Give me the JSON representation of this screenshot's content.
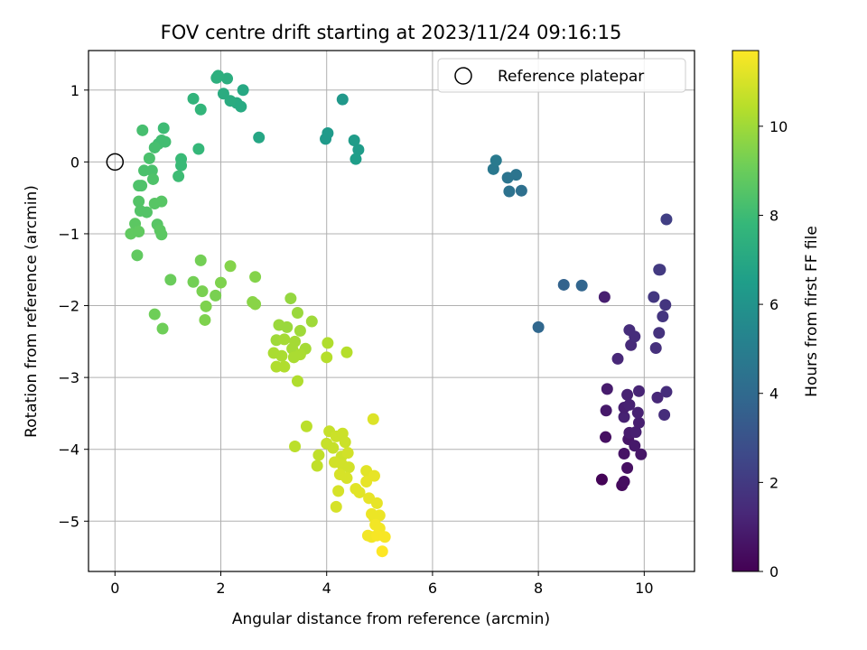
{
  "chart_data": {
    "type": "scatter",
    "title": "FOV centre drift starting at 2023/11/24 09:16:15",
    "xlabel": "Angular distance from reference (arcmin)",
    "ylabel": "Rotation from reference (arcmin)",
    "xlim": [
      -0.5,
      10.95
    ],
    "ylim": [
      -5.7,
      1.55
    ],
    "xticks": [
      0,
      2,
      4,
      6,
      8,
      10
    ],
    "yticks": [
      -5,
      -4,
      -3,
      -2,
      -1,
      0,
      1
    ],
    "grid": true,
    "legend": {
      "placement": "top-right",
      "entries": [
        "Reference platepar"
      ]
    },
    "reference_point": {
      "x": 0,
      "y": 0,
      "marker": "open-circle"
    },
    "colorbar": {
      "label": "Hours from first FF file",
      "colormap": "viridis",
      "range": [
        0,
        11.7
      ],
      "ticks": [
        0,
        2,
        4,
        6,
        8,
        10
      ]
    },
    "points": [
      {
        "x": 9.2,
        "y": -4.42,
        "h": 0.1
      },
      {
        "x": 9.58,
        "y": -4.5,
        "h": 0.3
      },
      {
        "x": 9.62,
        "y": -4.45,
        "h": 0.4
      },
      {
        "x": 9.68,
        "y": -4.26,
        "h": 0.5
      },
      {
        "x": 9.62,
        "y": -4.06,
        "h": 0.6
      },
      {
        "x": 9.27,
        "y": -3.83,
        "h": 0.5
      },
      {
        "x": 9.7,
        "y": -3.86,
        "h": 0.7
      },
      {
        "x": 9.82,
        "y": -3.95,
        "h": 0.8
      },
      {
        "x": 9.94,
        "y": -4.07,
        "h": 0.7
      },
      {
        "x": 9.72,
        "y": -3.77,
        "h": 0.9
      },
      {
        "x": 9.84,
        "y": -3.76,
        "h": 1.0
      },
      {
        "x": 9.9,
        "y": -3.63,
        "h": 1.0
      },
      {
        "x": 9.88,
        "y": -3.49,
        "h": 1.1
      },
      {
        "x": 9.62,
        "y": -3.55,
        "h": 1.1
      },
      {
        "x": 9.28,
        "y": -3.46,
        "h": 0.8
      },
      {
        "x": 9.62,
        "y": -3.42,
        "h": 1.0
      },
      {
        "x": 9.72,
        "y": -3.38,
        "h": 1.1
      },
      {
        "x": 9.68,
        "y": -3.24,
        "h": 1.1
      },
      {
        "x": 9.9,
        "y": -3.19,
        "h": 1.2
      },
      {
        "x": 9.3,
        "y": -3.16,
        "h": 0.9
      },
      {
        "x": 10.25,
        "y": -3.28,
        "h": 1.3
      },
      {
        "x": 10.42,
        "y": -3.2,
        "h": 1.5
      },
      {
        "x": 10.38,
        "y": -3.52,
        "h": 1.5
      },
      {
        "x": 9.5,
        "y": -2.74,
        "h": 1.3
      },
      {
        "x": 9.75,
        "y": -2.55,
        "h": 1.4
      },
      {
        "x": 9.72,
        "y": -2.34,
        "h": 1.5
      },
      {
        "x": 9.82,
        "y": -2.43,
        "h": 1.5
      },
      {
        "x": 10.22,
        "y": -2.59,
        "h": 1.6
      },
      {
        "x": 10.28,
        "y": -2.38,
        "h": 1.7
      },
      {
        "x": 10.35,
        "y": -2.15,
        "h": 1.8
      },
      {
        "x": 10.4,
        "y": -1.99,
        "h": 1.8
      },
      {
        "x": 10.18,
        "y": -1.88,
        "h": 1.9
      },
      {
        "x": 9.25,
        "y": -1.88,
        "h": 1.0
      },
      {
        "x": 10.28,
        "y": -1.5,
        "h": 2.0
      },
      {
        "x": 10.3,
        "y": -1.5,
        "h": 2.0
      },
      {
        "x": 10.42,
        "y": -0.8,
        "h": 2.2
      },
      {
        "x": 8.48,
        "y": -1.71,
        "h": 3.7
      },
      {
        "x": 8.82,
        "y": -1.72,
        "h": 3.8
      },
      {
        "x": 8.0,
        "y": -2.3,
        "h": 3.9
      },
      {
        "x": 7.68,
        "y": -0.4,
        "h": 4.3
      },
      {
        "x": 7.45,
        "y": -0.41,
        "h": 4.4
      },
      {
        "x": 7.42,
        "y": -0.22,
        "h": 4.5
      },
      {
        "x": 7.58,
        "y": -0.18,
        "h": 4.5
      },
      {
        "x": 7.15,
        "y": -0.1,
        "h": 4.7
      },
      {
        "x": 7.2,
        "y": 0.02,
        "h": 4.8
      },
      {
        "x": 4.3,
        "y": 0.87,
        "h": 6.2
      },
      {
        "x": 3.98,
        "y": 0.32,
        "h": 6.3
      },
      {
        "x": 4.02,
        "y": 0.4,
        "h": 6.3
      },
      {
        "x": 4.52,
        "y": 0.3,
        "h": 6.4
      },
      {
        "x": 4.6,
        "y": 0.17,
        "h": 6.4
      },
      {
        "x": 4.55,
        "y": 0.04,
        "h": 6.5
      },
      {
        "x": 2.72,
        "y": 0.34,
        "h": 6.9
      },
      {
        "x": 2.42,
        "y": 1.0,
        "h": 7.0
      },
      {
        "x": 2.3,
        "y": 0.82,
        "h": 7.1
      },
      {
        "x": 2.38,
        "y": 0.77,
        "h": 7.1
      },
      {
        "x": 2.18,
        "y": 0.85,
        "h": 7.2
      },
      {
        "x": 2.05,
        "y": 0.95,
        "h": 7.2
      },
      {
        "x": 2.12,
        "y": 1.16,
        "h": 7.3
      },
      {
        "x": 1.95,
        "y": 1.2,
        "h": 7.4
      },
      {
        "x": 1.92,
        "y": 1.17,
        "h": 7.4
      },
      {
        "x": 1.48,
        "y": 0.88,
        "h": 7.6
      },
      {
        "x": 1.62,
        "y": 0.73,
        "h": 7.7
      },
      {
        "x": 1.58,
        "y": 0.18,
        "h": 7.8
      },
      {
        "x": 1.25,
        "y": 0.04,
        "h": 7.9
      },
      {
        "x": 1.25,
        "y": -0.05,
        "h": 7.9
      },
      {
        "x": 1.2,
        "y": -0.2,
        "h": 8.0
      },
      {
        "x": 0.92,
        "y": 0.47,
        "h": 8.0
      },
      {
        "x": 0.88,
        "y": 0.3,
        "h": 8.1
      },
      {
        "x": 0.95,
        "y": 0.28,
        "h": 8.1
      },
      {
        "x": 0.82,
        "y": 0.25,
        "h": 8.1
      },
      {
        "x": 0.75,
        "y": 0.2,
        "h": 8.2
      },
      {
        "x": 0.52,
        "y": 0.44,
        "h": 8.2
      },
      {
        "x": 0.65,
        "y": 0.05,
        "h": 8.3
      },
      {
        "x": 0.55,
        "y": -0.12,
        "h": 8.3
      },
      {
        "x": 0.7,
        "y": -0.12,
        "h": 8.3
      },
      {
        "x": 0.72,
        "y": -0.24,
        "h": 8.4
      },
      {
        "x": 0.45,
        "y": -0.33,
        "h": 8.4
      },
      {
        "x": 0.5,
        "y": -0.33,
        "h": 8.4
      },
      {
        "x": 0.45,
        "y": -0.55,
        "h": 8.5
      },
      {
        "x": 0.48,
        "y": -0.68,
        "h": 8.5
      },
      {
        "x": 0.6,
        "y": -0.7,
        "h": 8.5
      },
      {
        "x": 0.75,
        "y": -0.58,
        "h": 8.6
      },
      {
        "x": 0.88,
        "y": -0.55,
        "h": 8.6
      },
      {
        "x": 0.8,
        "y": -0.87,
        "h": 8.6
      },
      {
        "x": 0.85,
        "y": -0.95,
        "h": 8.7
      },
      {
        "x": 0.88,
        "y": -1.01,
        "h": 8.7
      },
      {
        "x": 0.38,
        "y": -0.86,
        "h": 8.7
      },
      {
        "x": 0.3,
        "y": -1.0,
        "h": 8.8
      },
      {
        "x": 0.45,
        "y": -0.97,
        "h": 8.8
      },
      {
        "x": 0.42,
        "y": -1.3,
        "h": 8.8
      },
      {
        "x": 1.05,
        "y": -1.64,
        "h": 9.0
      },
      {
        "x": 0.75,
        "y": -2.12,
        "h": 9.1
      },
      {
        "x": 0.9,
        "y": -2.32,
        "h": 9.1
      },
      {
        "x": 1.48,
        "y": -1.67,
        "h": 9.2
      },
      {
        "x": 1.62,
        "y": -1.37,
        "h": 9.2
      },
      {
        "x": 1.65,
        "y": -1.8,
        "h": 9.3
      },
      {
        "x": 1.9,
        "y": -1.86,
        "h": 9.3
      },
      {
        "x": 2.0,
        "y": -1.68,
        "h": 9.4
      },
      {
        "x": 1.72,
        "y": -2.01,
        "h": 9.4
      },
      {
        "x": 1.7,
        "y": -2.2,
        "h": 9.4
      },
      {
        "x": 2.18,
        "y": -1.45,
        "h": 9.5
      },
      {
        "x": 2.65,
        "y": -1.6,
        "h": 9.5
      },
      {
        "x": 2.6,
        "y": -1.95,
        "h": 9.6
      },
      {
        "x": 2.65,
        "y": -1.98,
        "h": 9.6
      },
      {
        "x": 3.32,
        "y": -1.9,
        "h": 9.8
      },
      {
        "x": 3.1,
        "y": -2.27,
        "h": 9.9
      },
      {
        "x": 3.25,
        "y": -2.3,
        "h": 9.9
      },
      {
        "x": 3.45,
        "y": -2.1,
        "h": 9.9
      },
      {
        "x": 3.72,
        "y": -2.22,
        "h": 10.0
      },
      {
        "x": 3.5,
        "y": -2.35,
        "h": 10.0
      },
      {
        "x": 3.05,
        "y": -2.48,
        "h": 10.0
      },
      {
        "x": 3.2,
        "y": -2.47,
        "h": 10.1
      },
      {
        "x": 3.4,
        "y": -2.5,
        "h": 10.1
      },
      {
        "x": 3.6,
        "y": -2.6,
        "h": 10.1
      },
      {
        "x": 3.35,
        "y": -2.6,
        "h": 10.1
      },
      {
        "x": 3.0,
        "y": -2.66,
        "h": 10.2
      },
      {
        "x": 3.15,
        "y": -2.7,
        "h": 10.2
      },
      {
        "x": 3.38,
        "y": -2.72,
        "h": 10.2
      },
      {
        "x": 3.5,
        "y": -2.68,
        "h": 10.2
      },
      {
        "x": 3.05,
        "y": -2.85,
        "h": 10.3
      },
      {
        "x": 3.2,
        "y": -2.85,
        "h": 10.3
      },
      {
        "x": 3.45,
        "y": -3.05,
        "h": 10.3
      },
      {
        "x": 4.02,
        "y": -2.52,
        "h": 10.3
      },
      {
        "x": 4.0,
        "y": -2.72,
        "h": 10.4
      },
      {
        "x": 4.38,
        "y": -2.65,
        "h": 10.4
      },
      {
        "x": 3.62,
        "y": -3.68,
        "h": 10.5
      },
      {
        "x": 3.4,
        "y": -3.96,
        "h": 10.5
      },
      {
        "x": 3.85,
        "y": -4.08,
        "h": 10.6
      },
      {
        "x": 3.82,
        "y": -4.23,
        "h": 10.6
      },
      {
        "x": 4.05,
        "y": -3.75,
        "h": 10.7
      },
      {
        "x": 4.0,
        "y": -3.92,
        "h": 10.7
      },
      {
        "x": 4.12,
        "y": -3.98,
        "h": 10.7
      },
      {
        "x": 4.18,
        "y": -3.82,
        "h": 10.8
      },
      {
        "x": 4.3,
        "y": -3.78,
        "h": 10.8
      },
      {
        "x": 4.35,
        "y": -3.9,
        "h": 10.8
      },
      {
        "x": 4.28,
        "y": -4.1,
        "h": 10.8
      },
      {
        "x": 4.4,
        "y": -4.05,
        "h": 10.9
      },
      {
        "x": 4.15,
        "y": -4.18,
        "h": 10.9
      },
      {
        "x": 4.3,
        "y": -4.22,
        "h": 10.9
      },
      {
        "x": 4.42,
        "y": -4.25,
        "h": 10.9
      },
      {
        "x": 4.25,
        "y": -4.35,
        "h": 11.0
      },
      {
        "x": 4.38,
        "y": -4.4,
        "h": 11.0
      },
      {
        "x": 4.22,
        "y": -4.58,
        "h": 11.0
      },
      {
        "x": 4.18,
        "y": -4.8,
        "h": 11.0
      },
      {
        "x": 4.88,
        "y": -3.58,
        "h": 11.1
      },
      {
        "x": 4.55,
        "y": -4.55,
        "h": 11.2
      },
      {
        "x": 4.62,
        "y": -4.6,
        "h": 11.2
      },
      {
        "x": 4.75,
        "y": -4.3,
        "h": 11.2
      },
      {
        "x": 4.75,
        "y": -4.45,
        "h": 11.3
      },
      {
        "x": 4.9,
        "y": -4.37,
        "h": 11.3
      },
      {
        "x": 4.8,
        "y": -4.68,
        "h": 11.3
      },
      {
        "x": 4.95,
        "y": -4.75,
        "h": 11.3
      },
      {
        "x": 4.85,
        "y": -4.9,
        "h": 11.4
      },
      {
        "x": 4.9,
        "y": -4.95,
        "h": 11.4
      },
      {
        "x": 5.0,
        "y": -4.92,
        "h": 11.4
      },
      {
        "x": 4.92,
        "y": -5.05,
        "h": 11.5
      },
      {
        "x": 5.0,
        "y": -5.1,
        "h": 11.5
      },
      {
        "x": 4.78,
        "y": -5.2,
        "h": 11.5
      },
      {
        "x": 4.85,
        "y": -5.22,
        "h": 11.5
      },
      {
        "x": 4.95,
        "y": -5.2,
        "h": 11.6
      },
      {
        "x": 5.1,
        "y": -5.22,
        "h": 11.6
      },
      {
        "x": 5.05,
        "y": -5.42,
        "h": 11.7
      }
    ]
  }
}
